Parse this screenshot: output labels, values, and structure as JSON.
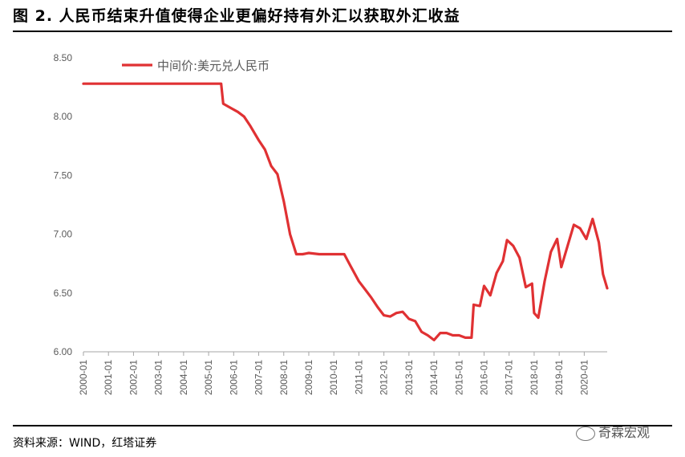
{
  "figure": {
    "title": "图 2. 人民币结束升值使得企业更偏好持有外汇以获取外汇收益",
    "source": "资料来源：WIND，红塔证券",
    "watermark": "奇霖宏观"
  },
  "chart_data": {
    "type": "line",
    "title": "",
    "xlabel": "",
    "ylabel": "",
    "ylim": [
      6.0,
      8.5
    ],
    "xlim": [
      "2000-01",
      "2020-12"
    ],
    "grid": false,
    "legend_position": "top-left",
    "y_ticks": [
      "8.50",
      "8.00",
      "7.50",
      "7.00",
      "6.50",
      "6.00"
    ],
    "x_ticks": [
      "2000-01",
      "2001-01",
      "2002-01",
      "2003-01",
      "2004-01",
      "2005-01",
      "2006-01",
      "2007-01",
      "2008-01",
      "2009-01",
      "2010-01",
      "2011-01",
      "2012-01",
      "2013-01",
      "2014-01",
      "2015-01",
      "2016-01",
      "2017-01",
      "2018-01",
      "2019-01",
      "2020-01"
    ],
    "series": [
      {
        "name": "中间价:美元兑人民币",
        "color": "#e03133",
        "points": [
          [
            "2000-01",
            8.28
          ],
          [
            "2001-01",
            8.28
          ],
          [
            "2002-01",
            8.28
          ],
          [
            "2003-01",
            8.28
          ],
          [
            "2004-01",
            8.28
          ],
          [
            "2005-01",
            8.28
          ],
          [
            "2005-07",
            8.28
          ],
          [
            "2005-08",
            8.11
          ],
          [
            "2005-12",
            8.07
          ],
          [
            "2006-03",
            8.04
          ],
          [
            "2006-06",
            8.0
          ],
          [
            "2006-09",
            7.92
          ],
          [
            "2007-01",
            7.8
          ],
          [
            "2007-04",
            7.72
          ],
          [
            "2007-07",
            7.58
          ],
          [
            "2007-10",
            7.51
          ],
          [
            "2008-01",
            7.28
          ],
          [
            "2008-04",
            7.0
          ],
          [
            "2008-07",
            6.83
          ],
          [
            "2008-10",
            6.83
          ],
          [
            "2009-01",
            6.84
          ],
          [
            "2009-06",
            6.83
          ],
          [
            "2010-01",
            6.83
          ],
          [
            "2010-06",
            6.83
          ],
          [
            "2010-09",
            6.73
          ],
          [
            "2011-01",
            6.6
          ],
          [
            "2011-04",
            6.53
          ],
          [
            "2011-07",
            6.46
          ],
          [
            "2011-10",
            6.38
          ],
          [
            "2012-01",
            6.31
          ],
          [
            "2012-04",
            6.3
          ],
          [
            "2012-07",
            6.33
          ],
          [
            "2012-10",
            6.34
          ],
          [
            "2013-01",
            6.28
          ],
          [
            "2013-04",
            6.26
          ],
          [
            "2013-07",
            6.17
          ],
          [
            "2013-10",
            6.14
          ],
          [
            "2014-01",
            6.1
          ],
          [
            "2014-04",
            6.16
          ],
          [
            "2014-07",
            6.16
          ],
          [
            "2014-10",
            6.14
          ],
          [
            "2015-01",
            6.14
          ],
          [
            "2015-04",
            6.12
          ],
          [
            "2015-07",
            6.12
          ],
          [
            "2015-08",
            6.4
          ],
          [
            "2015-11",
            6.39
          ],
          [
            "2016-01",
            6.56
          ],
          [
            "2016-04",
            6.48
          ],
          [
            "2016-07",
            6.67
          ],
          [
            "2016-10",
            6.77
          ],
          [
            "2016-12",
            6.95
          ],
          [
            "2017-03",
            6.9
          ],
          [
            "2017-06",
            6.8
          ],
          [
            "2017-09",
            6.55
          ],
          [
            "2017-12",
            6.58
          ],
          [
            "2018-01",
            6.33
          ],
          [
            "2018-03",
            6.29
          ],
          [
            "2018-06",
            6.6
          ],
          [
            "2018-09",
            6.85
          ],
          [
            "2018-12",
            6.96
          ],
          [
            "2019-02",
            6.72
          ],
          [
            "2019-05",
            6.9
          ],
          [
            "2019-08",
            7.08
          ],
          [
            "2019-11",
            7.05
          ],
          [
            "2020-02",
            6.96
          ],
          [
            "2020-05",
            7.13
          ],
          [
            "2020-08",
            6.93
          ],
          [
            "2020-10",
            6.66
          ],
          [
            "2020-12",
            6.54
          ]
        ]
      }
    ]
  }
}
